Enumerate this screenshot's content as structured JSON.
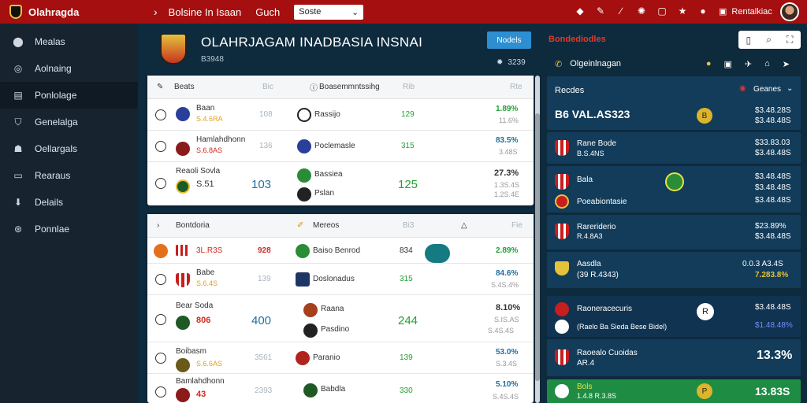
{
  "topbar": {
    "brand": "Olahragda",
    "crumb1": "Bolsine In Isaan",
    "crumb2": "Guch",
    "select_value": "Soste",
    "user_label": "Rentalkiac"
  },
  "sidebar": {
    "items": [
      {
        "label": "Mealas",
        "icon": "circle-icon"
      },
      {
        "label": "Aolnaing",
        "icon": "compass-icon"
      },
      {
        "label": "Ponlolage",
        "icon": "document-icon"
      },
      {
        "label": "Genelalga",
        "icon": "shield-icon"
      },
      {
        "label": "Oellargals",
        "icon": "user-icon"
      },
      {
        "label": "Rearaus",
        "icon": "box-icon"
      },
      {
        "label": "Delails",
        "icon": "download-icon"
      },
      {
        "label": "Ponnlae",
        "icon": "globe-icon"
      }
    ]
  },
  "header": {
    "title": "OLAHRJAGAM INADBASIA INSNAI",
    "subtitle": "B3948",
    "news_button": "Nodels",
    "stat": "3239"
  },
  "panel1": {
    "headers": [
      "Beats",
      "Bic",
      "Boasemmntssihg",
      "Rib",
      "Rte"
    ],
    "rows": [
      {
        "name": "Baan",
        "sub": "S.4.6RA",
        "mid": "108",
        "team": "Rassijo",
        "score": "129",
        "pct": "1.89%",
        "pct_sub": "11.6%"
      },
      {
        "name": "Hamlahdhonn",
        "sub": "S.6.8AS",
        "mid": "136",
        "team": "Poclemasle",
        "score": "315",
        "pct": "83.5%",
        "pct_sub": "3.48S"
      },
      {
        "name": "Reaoli Sovla",
        "sub": "S.51",
        "mid": "103",
        "team": "Bassiea",
        "team2": "Pslan",
        "score": "125",
        "pct": "27.3%",
        "pct_sub": "1.3S.4S",
        "pct_sub2": "1.2S.4E"
      }
    ]
  },
  "panel2": {
    "headers": [
      "Bontdoria",
      "Mereos",
      "Bi3",
      "Fie"
    ],
    "rows": [
      {
        "name": "3L.R3S",
        "mid": "928",
        "team": "Baiso Benrod",
        "score": "834",
        "pct": "2.89%"
      },
      {
        "name": "Babe",
        "sub": "S.6.4S",
        "mid": "139",
        "team": "Doslonadus",
        "score": "315",
        "pct": "84.6%",
        "pct_sub": "S.4S.4%"
      },
      {
        "name": "Bear Soda",
        "sub": "806",
        "mid": "400",
        "team": "Raana",
        "team2": "Pasdino",
        "score": "244",
        "pct": "8.10%",
        "pct_sub": "S.IS.AS",
        "pct_sub2": "S.4S.4S"
      },
      {
        "name": "Boibasm",
        "sub": "S.6.6AS",
        "mid": "3561",
        "team": "Paranio",
        "score": "139",
        "pct": "53.0%",
        "pct_sub": "S.3.4S"
      },
      {
        "name": "Bamlahdhonn",
        "sub": "43",
        "mid": "2393",
        "team": "Babdla",
        "score": "330",
        "pct": "5.10%",
        "pct_sub": "S.4S.4S"
      }
    ]
  },
  "right": {
    "header_label": "Bondediodles",
    "sub_label": "Olgeinlnagan",
    "card0": {
      "title": "Recdes",
      "select": "Geanes",
      "big": "B6 VAL.AS323",
      "v1": "$3.48.28S",
      "v2": "$3.48.48S",
      "dot": "B"
    },
    "card1": {
      "name": "Rane Bode",
      "sub": "B.S.4NS",
      "v1": "$33.83.03",
      "v2": "$3.48.48S"
    },
    "card2": {
      "name": "Bala",
      "sub": "Poeabiontasie",
      "v1": "$3.48.48S",
      "v2": "$3.48.48S",
      "v3": "$3.48.48S"
    },
    "card3": {
      "name": "Rareriderio",
      "sub": "R.4.8A3",
      "v1": "$23.89%",
      "v2": "$3.48.48S"
    },
    "card4": {
      "name": "Aasdla",
      "sub": "(39 R.4343)",
      "v1": "0.0.3 A3.4S",
      "v2": "7.283.8%"
    },
    "card5": {
      "name": "Raoneracecuris",
      "sub": "(Raelo Ba Sieda Bese Bidel)",
      "v1": "$3.48.48S",
      "v2": "$1.48.48%",
      "dot": "R"
    },
    "card6": {
      "name": "Raoealo Cuoidas",
      "sub": "AR.4",
      "v1": "13.3%"
    },
    "card7": {
      "name": "Bols",
      "sub": "1.4.8 R.3.8S",
      "v1": "13.83S",
      "dot": "P"
    }
  },
  "colors": {
    "topbar": "#a50f0f",
    "sidebar": "#17232f",
    "background": "#0e2a3d",
    "accent_green": "#25a035",
    "accent_blue": "#2d8fd1",
    "card": "#123c5a"
  }
}
